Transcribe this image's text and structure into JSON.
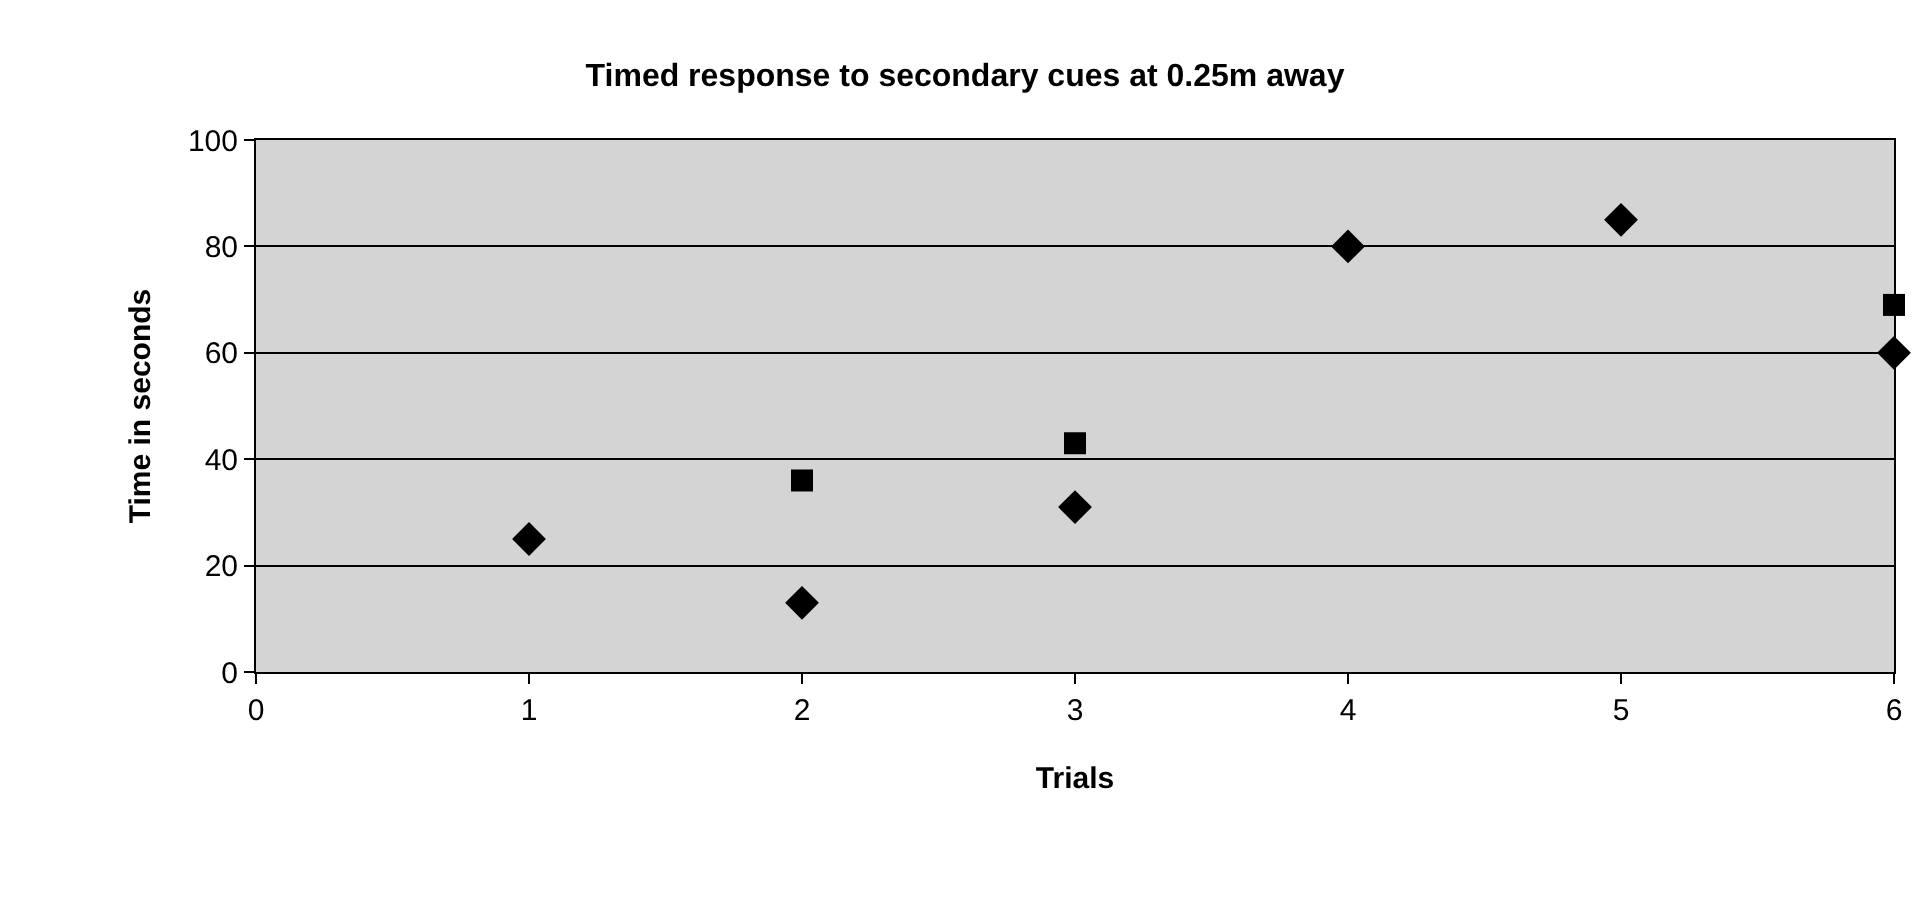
{
  "chart_data": {
    "type": "scatter",
    "title": "Timed response to secondary cues at 0.25m away",
    "xlabel": "Trials",
    "ylabel": "Time in seconds",
    "x": [
      1,
      2,
      3,
      4,
      5,
      6
    ],
    "series": [
      {
        "color": "#000000",
        "marker": "diamond",
        "values": [
          25,
          13,
          31,
          80,
          85,
          60
        ]
      },
      {
        "color": "#000000",
        "marker": "square",
        "values": [
          null,
          36,
          43,
          null,
          null,
          69
        ]
      }
    ],
    "xlim": [
      0,
      6
    ],
    "xticks": [
      0,
      1,
      2,
      3,
      4,
      5,
      6
    ],
    "ylim": [
      0,
      100
    ],
    "yticks": [
      0,
      20,
      40,
      60,
      80,
      100
    ],
    "grid": "y"
  }
}
